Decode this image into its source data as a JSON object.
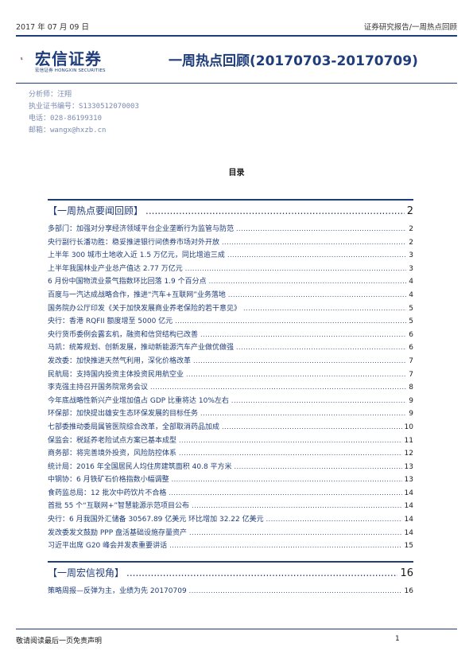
{
  "header": {
    "date": "2017 年 07 月 09 日",
    "category": "证券研究报告/一周热点回顾",
    "brand_cn": "宏信证券",
    "brand_en": "HONGXIN SECURITIES",
    "brand_mini": "宏信证券",
    "report_title": "一周热点回顾(20170703-20170709)",
    "accent_color": "#1f3d7a",
    "logo_red": "#d42a2a"
  },
  "analyst": {
    "name": "分析师：汪翔",
    "license": "执业证书编号：S1330512070003",
    "phone": "电话：028-86199310",
    "email": "邮箱：wangx@hxzb.cn"
  },
  "toc": {
    "title": "目录",
    "sections": [
      {
        "title": "【一周热点要闻回顾】",
        "page": "2",
        "items": [
          {
            "title": "多部门：加强对分享经济领域平台企业垄断行为监管与防范",
            "page": "2"
          },
          {
            "title": "央行副行长潘功胜：稳妥推进银行间债券市场对外开放",
            "page": "2"
          },
          {
            "title": "上半年 300 城市土地收入近 1.5 万亿元，同比增逾三成",
            "page": "3"
          },
          {
            "title": "上半年我国林业产业总产值达 2.77 万亿元",
            "page": "3"
          },
          {
            "title": "6 月份中国物流业景气指数环比回落 1.9 个百分点",
            "page": "4"
          },
          {
            "title": "百度与一汽达成战略合作，推进“汽车+互联网”业务落地",
            "page": "4"
          },
          {
            "title": "国务院办公厅印发《关于加快发展商业养老保险的若干意见》",
            "page": "5"
          },
          {
            "title": "央行：香港 RQFII 额度增至 5000 亿元",
            "page": "5"
          },
          {
            "title": "央行货币委例会露玄机，融资和信贷结构已改善",
            "page": "6"
          },
          {
            "title": "马凯：统筹规划、创新发展，推动新能源汽车产业做优做强",
            "page": "6"
          },
          {
            "title": "发改委：加快推进天然气利用，深化价格改革",
            "page": "7"
          },
          {
            "title": "民航局：支持国内投资主体投资民用航空业",
            "page": "7"
          },
          {
            "title": "李克强主持召开国务院常务会议",
            "page": "8"
          },
          {
            "title": "今年底战略性新兴产业增加值占 GDP 比重将达 10%左右",
            "page": "9"
          },
          {
            "title": "环保部：加快提出雄安生态环保发展的目标任务",
            "page": "9"
          },
          {
            "title": "七部委推动委局属管医院综合改革，全部取消药品加成",
            "page": "10"
          },
          {
            "title": "保监会：税延养老险试点方案已基本成型",
            "page": "11"
          },
          {
            "title": "商务部：将完善境外投资，风险防控体系",
            "page": "12"
          },
          {
            "title": "统计局：2016 年全国居民人均住房建筑面积 40.8 平方米",
            "page": "13"
          },
          {
            "title": "中钢协：6 月铁矿石价格指数小幅调整",
            "page": "13"
          },
          {
            "title": "食药监总局：12 批次中药饮片不合格",
            "page": "14"
          },
          {
            "title": "首批 55 个“互联网+”智慧能源示范项目公布",
            "page": "14"
          },
          {
            "title": "央行：6 月我国外汇储备 30567.89 亿美元 环比增加 32.22 亿美元",
            "page": "14"
          },
          {
            "title": "发改委发文鼓励 PPP 盘活基础设施存量资产",
            "page": "14"
          },
          {
            "title": "习近平出席 G20 峰会并发表重要讲话",
            "page": "15"
          }
        ]
      },
      {
        "title": "【一周宏信视角】",
        "page": "16",
        "items": [
          {
            "title": "策略周报—反弹为主，业绩为先 20170709",
            "page": "16"
          }
        ]
      }
    ]
  },
  "footer": {
    "disclaimer": "敬请阅读最后一页免责声明",
    "page_number": "1"
  }
}
